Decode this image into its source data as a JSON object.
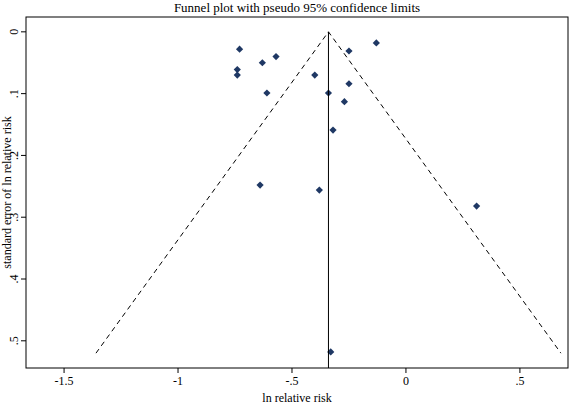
{
  "chart_data": {
    "type": "scatter",
    "title": "Funnel plot with pseudo 95% confidence limits",
    "x_label": "ln relative risk",
    "y_label": "standard error of ln relative risk",
    "xlim": [
      -1.667,
      0.711
    ],
    "ylim": [
      0.544,
      -0.024
    ],
    "xticks": [
      -1.5,
      -1,
      {
        "value": -0.5,
        "label": "-.5"
      },
      0,
      {
        "value": 0.5,
        "label": ".5"
      }
    ],
    "yticks": [
      0,
      {
        "value": 0.1,
        "label": ".1"
      },
      {
        "value": 0.2,
        "label": ".2"
      },
      {
        "value": 0.3,
        "label": ".3"
      },
      {
        "value": 0.4,
        "label": ".4"
      },
      {
        "value": 0.5,
        "label": ".5"
      }
    ],
    "grid": false,
    "series": [
      {
        "type": "scatter",
        "marker": "diamond",
        "color": "#1f3864",
        "x": [
          -0.73,
          -0.74,
          -0.74,
          -0.63,
          -0.57,
          -0.4,
          -0.61,
          -0.34,
          -0.25,
          -0.13,
          -0.25,
          -0.27,
          -0.32,
          -0.64,
          -0.38,
          0.31,
          -0.33
        ],
        "y": [
          0.028,
          0.061,
          0.07,
          0.05,
          0.04,
          0.07,
          0.099,
          0.099,
          0.031,
          0.018,
          0.084,
          0.113,
          0.159,
          0.248,
          0.256,
          0.282,
          0.518
        ]
      },
      {
        "type": "line",
        "line_style": "solid",
        "color": "#000000",
        "x": [
          -0.34,
          -0.34
        ],
        "y": [
          0,
          0.544
        ]
      },
      {
        "type": "line",
        "line_style": "dashed",
        "color": "#000000",
        "x": [
          -1.36,
          -0.34,
          0.68
        ],
        "y": [
          0.52,
          0,
          0.52
        ]
      }
    ]
  }
}
